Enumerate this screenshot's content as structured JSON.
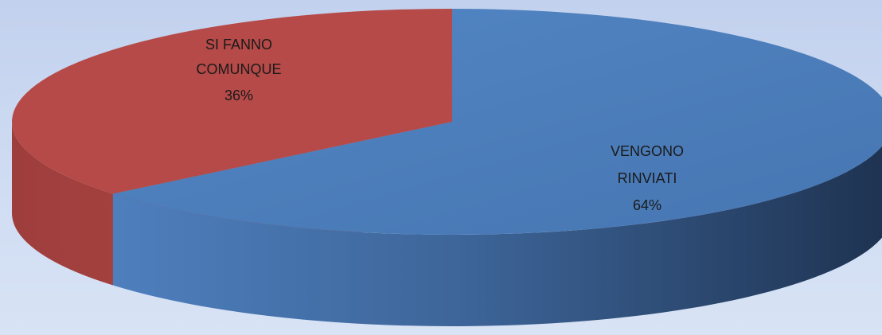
{
  "chart_data": {
    "type": "pie",
    "style": "3d",
    "title": "",
    "slices": [
      {
        "label_lines": [
          "VENGONO",
          "RINVIATI"
        ],
        "value": 64,
        "percent_label": "64%",
        "color": "#4a7ab5",
        "side_color_dark": "#1f3350"
      },
      {
        "label_lines": [
          "SI FANNO",
          "COMUNQUE"
        ],
        "value": 36,
        "percent_label": "36%",
        "color": "#b54a48",
        "side_color_dark": "#a8413f"
      }
    ],
    "legend": "none",
    "background": "#c6d4ef"
  }
}
